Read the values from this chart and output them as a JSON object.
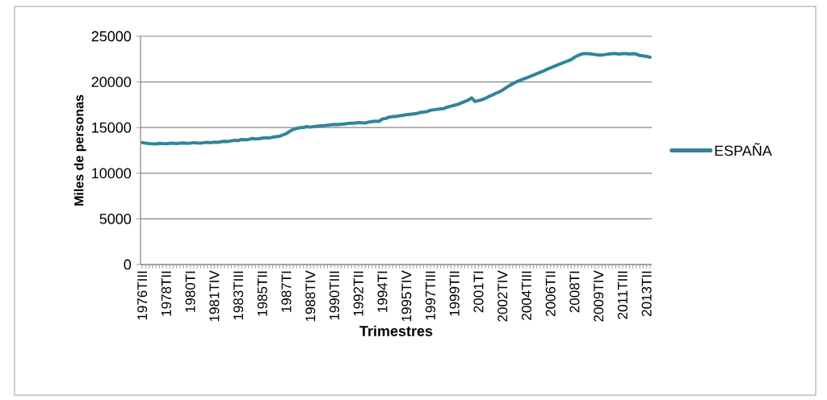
{
  "chart_data": {
    "type": "line",
    "xlabel": "Trimestres",
    "ylabel": "Miles de personas",
    "categories": [
      "1976TIII",
      null,
      null,
      null,
      null,
      null,
      null,
      "1978TII",
      null,
      null,
      null,
      null,
      null,
      null,
      "1980TI",
      null,
      null,
      null,
      null,
      null,
      null,
      "1981TIV",
      null,
      null,
      null,
      null,
      null,
      null,
      "1983TIII",
      null,
      null,
      null,
      null,
      null,
      null,
      "1985TII",
      null,
      null,
      null,
      null,
      null,
      null,
      "1987TI",
      null,
      null,
      null,
      null,
      null,
      null,
      "1988TIV",
      null,
      null,
      null,
      null,
      null,
      null,
      "1990TIII",
      null,
      null,
      null,
      null,
      null,
      null,
      "1992TII",
      null,
      null,
      null,
      null,
      null,
      null,
      "1994TI",
      null,
      null,
      null,
      null,
      null,
      null,
      "1995TIV",
      null,
      null,
      null,
      null,
      null,
      null,
      "1997TIII",
      null,
      null,
      null,
      null,
      null,
      null,
      "1999TII",
      null,
      null,
      null,
      null,
      null,
      null,
      "2001TI",
      null,
      null,
      null,
      null,
      null,
      null,
      "2002TIV",
      null,
      null,
      null,
      null,
      null,
      null,
      "2004TIII",
      null,
      null,
      null,
      null,
      null,
      null,
      "2006TII",
      null,
      null,
      null,
      null,
      null,
      null,
      "2008TI",
      null,
      null,
      null,
      null,
      null,
      null,
      "2009TIV",
      null,
      null,
      null,
      null,
      null,
      null,
      "2011TIII",
      null,
      null,
      null,
      null,
      null,
      null,
      "2013TII",
      null
    ],
    "series": [
      {
        "name": "ESPAÑA",
        "color": "#31849b",
        "values": [
          13350,
          13300,
          13250,
          13220,
          13200,
          13280,
          13250,
          13230,
          13280,
          13300,
          13260,
          13300,
          13320,
          13280,
          13300,
          13350,
          13320,
          13300,
          13350,
          13380,
          13350,
          13400,
          13380,
          13450,
          13500,
          13480,
          13550,
          13600,
          13580,
          13700,
          13680,
          13700,
          13800,
          13760,
          13780,
          13850,
          13880,
          13860,
          13950,
          14000,
          14050,
          14200,
          14350,
          14600,
          14800,
          14900,
          15000,
          15020,
          15100,
          15050,
          15100,
          15150,
          15200,
          15220,
          15250,
          15300,
          15350,
          15330,
          15380,
          15400,
          15450,
          15480,
          15500,
          15550,
          15520,
          15500,
          15600,
          15650,
          15700,
          15680,
          15950,
          16000,
          16150,
          16200,
          16220,
          16300,
          16350,
          16400,
          16450,
          16500,
          16550,
          16650,
          16700,
          16750,
          16900,
          16950,
          17000,
          17050,
          17100,
          17250,
          17350,
          17450,
          17550,
          17700,
          17850,
          18000,
          18250,
          17850,
          17950,
          18050,
          18200,
          18400,
          18550,
          18750,
          18900,
          19100,
          19350,
          19600,
          19800,
          20000,
          20150,
          20300,
          20450,
          20600,
          20750,
          20900,
          21050,
          21200,
          21400,
          21550,
          21700,
          21850,
          22000,
          22150,
          22300,
          22450,
          22700,
          22900,
          23050,
          23100,
          23100,
          23050,
          23000,
          22950,
          22950,
          23000,
          23050,
          23100,
          23100,
          23050,
          23100,
          23100,
          23050,
          23100,
          23050,
          22900,
          22850,
          22800,
          22700
        ]
      }
    ],
    "ylim": [
      0,
      25000
    ],
    "yticks": [
      0,
      5000,
      10000,
      15000,
      20000,
      25000
    ],
    "grid": "y",
    "legend": "right"
  }
}
